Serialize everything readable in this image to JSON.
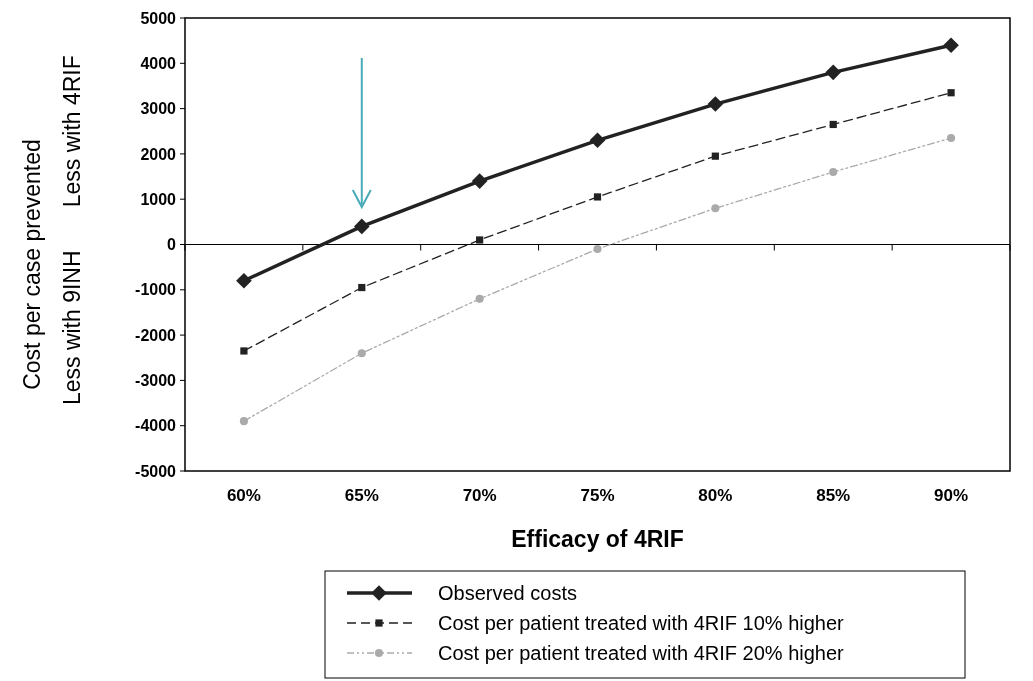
{
  "chart_data": {
    "type": "line",
    "xlabel": "Efficacy of 4RIF",
    "ylabel": "Cost per case prevented",
    "annotations": [
      "Less with 4RIF",
      "Less with 9INH"
    ],
    "categories": [
      "60%",
      "65%",
      "70%",
      "75%",
      "80%",
      "85%",
      "90%"
    ],
    "series": [
      {
        "name": "Observed costs",
        "color": "#222222",
        "marker": "diamond",
        "line_style": "solid",
        "values": [
          -800,
          400,
          1400,
          2300,
          3100,
          3800,
          4400
        ]
      },
      {
        "name": "Cost per patient treated with 4RIF 10% higher",
        "color": "#222222",
        "marker": "square",
        "line_style": "dashed",
        "values": [
          -2350,
          -950,
          100,
          1050,
          1950,
          2650,
          3350
        ]
      },
      {
        "name": "Cost per patient treated with 4RIF 20% higher",
        "color": "#aaaaaa",
        "marker": "circle",
        "line_style": "dotted",
        "values": [
          -3900,
          -2400,
          -1200,
          -100,
          800,
          1600,
          2350
        ]
      }
    ],
    "ylim": [
      -5000,
      5000
    ],
    "yticks": [
      -5000,
      -4000,
      -3000,
      -2000,
      -1000,
      0,
      1000,
      2000,
      3000,
      4000,
      5000
    ],
    "legend": "bottom"
  }
}
